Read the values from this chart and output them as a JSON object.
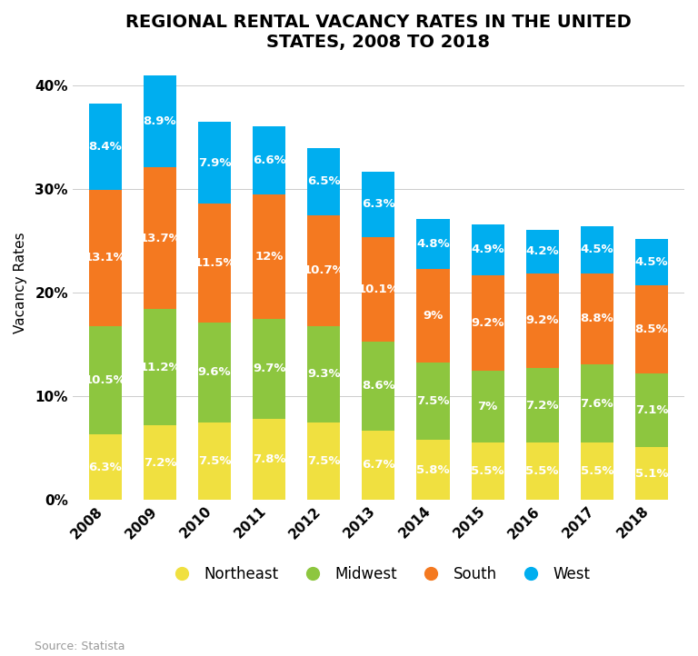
{
  "title": "REGIONAL RENTAL VACANCY RATES IN THE UNITED\nSTATES, 2008 TO 2018",
  "years": [
    "2008",
    "2009",
    "2010",
    "2011",
    "2012",
    "2013",
    "2014",
    "2015",
    "2016",
    "2017",
    "2018"
  ],
  "northeast": [
    6.3,
    7.2,
    7.5,
    7.8,
    7.5,
    6.7,
    5.8,
    5.5,
    5.5,
    5.5,
    5.1
  ],
  "midwest": [
    10.5,
    11.2,
    9.6,
    9.7,
    9.3,
    8.6,
    7.5,
    7.0,
    7.2,
    7.6,
    7.1
  ],
  "south": [
    13.1,
    13.7,
    11.5,
    12.0,
    10.7,
    10.1,
    9.0,
    9.2,
    9.2,
    8.8,
    8.5
  ],
  "west": [
    8.4,
    8.9,
    7.9,
    6.6,
    6.5,
    6.3,
    4.8,
    4.9,
    4.2,
    4.5,
    4.5
  ],
  "ne_labels": [
    "6.3%",
    "7.2%",
    "7.5%",
    "7.8%",
    "7.5%",
    "6.7%",
    "5.8%",
    "5.5%",
    "5.5%",
    "5.5%",
    "5.1%"
  ],
  "mw_labels": [
    "10.5%",
    "11.2%",
    "9.6%",
    "9.7%",
    "9.3%",
    "8.6%",
    "7.5%",
    "7%",
    "7.2%",
    "7.6%",
    "7.1%"
  ],
  "so_labels": [
    "13.1%",
    "13.7%",
    "11.5%",
    "12%",
    "10.7%",
    "10.1%",
    "9%",
    "9.2%",
    "9.2%",
    "8.8%",
    "8.5%"
  ],
  "we_labels": [
    "8.4%",
    "8.9%",
    "7.9%",
    "6.6%",
    "6.5%",
    "6.3%",
    "4.8%",
    "4.9%",
    "4.2%",
    "4.5%",
    "4.5%"
  ],
  "color_northeast": "#F0E040",
  "color_midwest": "#8DC63F",
  "color_south": "#F47920",
  "color_west": "#00AEEF",
  "ylabel": "Vacancy Rates",
  "source": "Source: Statista",
  "yticks": [
    0,
    10,
    20,
    30,
    40
  ],
  "ytick_labels": [
    "0%",
    "10%",
    "20%",
    "30%",
    "40%"
  ],
  "background_color": "#FFFFFF",
  "legend_labels": [
    "Northeast",
    "Midwest",
    "South",
    "West"
  ],
  "title_fontsize": 14,
  "label_fontsize": 9.5,
  "bar_width": 0.6
}
